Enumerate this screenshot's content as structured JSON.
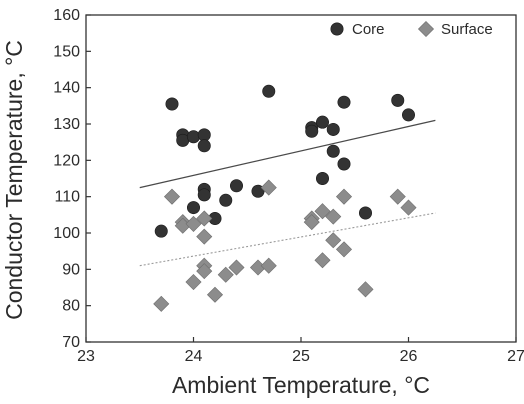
{
  "chart_data": {
    "type": "scatter",
    "xlabel": "Ambient Temperature, °C",
    "ylabel": "Conductor Temperature, °C",
    "xlim": [
      23,
      27
    ],
    "ylim": [
      70,
      160
    ],
    "xticks": [
      23,
      24,
      25,
      26,
      27
    ],
    "yticks": [
      70,
      80,
      90,
      100,
      110,
      120,
      130,
      140,
      150,
      160
    ],
    "legend_position": "top-right",
    "series": [
      {
        "name": "Core",
        "marker": "circle",
        "color": "#333333",
        "points": [
          [
            23.7,
            100.5
          ],
          [
            23.8,
            135.5
          ],
          [
            23.9,
            127
          ],
          [
            23.9,
            125.5
          ],
          [
            24.0,
            126.5
          ],
          [
            24.0,
            107
          ],
          [
            24.1,
            127
          ],
          [
            24.1,
            124
          ],
          [
            24.1,
            112
          ],
          [
            24.1,
            110.5
          ],
          [
            24.2,
            104
          ],
          [
            24.3,
            109
          ],
          [
            24.4,
            113
          ],
          [
            24.6,
            111.5
          ],
          [
            24.7,
            139
          ],
          [
            25.1,
            129
          ],
          [
            25.1,
            128
          ],
          [
            25.2,
            130.5
          ],
          [
            25.2,
            115
          ],
          [
            25.3,
            128.5
          ],
          [
            25.3,
            122.5
          ],
          [
            25.4,
            136
          ],
          [
            25.4,
            119
          ],
          [
            25.6,
            105.5
          ],
          [
            25.9,
            136.5
          ],
          [
            26.0,
            132.5
          ]
        ],
        "trend": {
          "x": [
            23.5,
            26.25
          ],
          "y": [
            112.5,
            131
          ],
          "color": "#4a4a4a",
          "style": "solid"
        }
      },
      {
        "name": "Surface",
        "marker": "diamond",
        "color": "#8c8c8c",
        "points": [
          [
            23.7,
            80.5
          ],
          [
            23.8,
            110
          ],
          [
            23.9,
            103
          ],
          [
            23.9,
            102
          ],
          [
            24.0,
            102.5
          ],
          [
            24.0,
            86.5
          ],
          [
            24.1,
            104
          ],
          [
            24.1,
            99
          ],
          [
            24.1,
            91
          ],
          [
            24.1,
            89.5
          ],
          [
            24.2,
            83
          ],
          [
            24.3,
            88.5
          ],
          [
            24.4,
            90.5
          ],
          [
            24.6,
            90.5
          ],
          [
            24.7,
            91
          ],
          [
            24.7,
            112.5
          ],
          [
            25.1,
            104
          ],
          [
            25.1,
            103
          ],
          [
            25.2,
            106
          ],
          [
            25.2,
            92.5
          ],
          [
            25.3,
            104.5
          ],
          [
            25.3,
            98
          ],
          [
            25.4,
            110
          ],
          [
            25.4,
            95.5
          ],
          [
            25.6,
            84.5
          ],
          [
            25.9,
            110
          ],
          [
            26.0,
            107
          ]
        ],
        "trend": {
          "x": [
            23.5,
            26.25
          ],
          "y": [
            91,
            105.5
          ],
          "color": "#9a9a9a",
          "style": "dotted"
        }
      }
    ]
  }
}
